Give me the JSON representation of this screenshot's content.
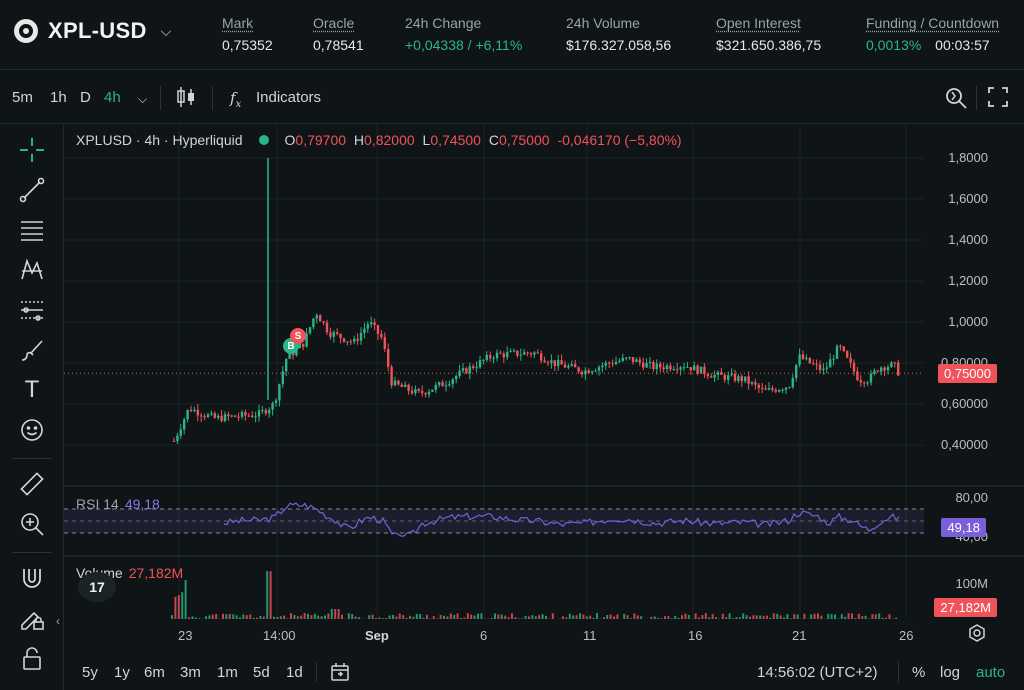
{
  "header": {
    "symbol": "XPL-USD",
    "stats": [
      {
        "label": "Mark",
        "value": "0,75352"
      },
      {
        "label": "Oracle",
        "value": "0,78541"
      },
      {
        "label": "24h Change",
        "value": "+0,04338 / +6,11%"
      },
      {
        "label": "24h Volume",
        "value": "$176.327.058,56"
      },
      {
        "label": "Open Interest",
        "value": "$321.650.386,75"
      },
      {
        "label": "Funding / Countdown",
        "funding": "0,0013%",
        "countdown": "00:03:57"
      }
    ]
  },
  "toolbar": {
    "intervals": [
      "5m",
      "1h",
      "D",
      "4h"
    ],
    "active_interval": "4h",
    "indicators_label": "Indicators"
  },
  "legend": {
    "title": "XPLUSD · 4h · Hyperliquid",
    "o_key": "O",
    "o": "0,79700",
    "h_key": "H",
    "h": "0,82000",
    "l_key": "L",
    "l": "0,74500",
    "c_key": "C",
    "c": "0,75000",
    "change": "-0,046170 (−5,80%)",
    "rsi_label": "RSI 14",
    "rsi_value": "49,18",
    "volume_label": "Volume",
    "volume_value": "27,182M"
  },
  "axis": {
    "price_ticks": [
      "1,8000",
      "1,6000",
      "1,4000",
      "1,2000",
      "1,0000",
      "0,80000",
      "0,60000",
      "0,40000"
    ],
    "price_tag": "0,75000",
    "rsi_ticks": [
      "80,00",
      "40,00"
    ],
    "rsi_tag": "49,18",
    "volume_tick": "100M",
    "volume_tag": "27,182M",
    "x_ticks": [
      "23",
      "14:00",
      "Sep",
      "6",
      "11",
      "16",
      "21",
      "26"
    ],
    "buy_marker": "B",
    "sell_marker": "S"
  },
  "bottom": {
    "ranges": [
      "5y",
      "1y",
      "6m",
      "3m",
      "1m",
      "5d",
      "1d"
    ],
    "clock": "14:56:02 (UTC+2)",
    "percent_label": "%",
    "log_label": "log",
    "auto_label": "auto"
  },
  "tools": [
    "crosshair-icon",
    "trend-line-icon",
    "horizontal-lines-icon",
    "pattern-icon",
    "fib-icon",
    "brush-icon",
    "text-icon",
    "emoji-icon",
    "ruler-icon",
    "zoom-in-icon",
    "magnet-icon",
    "lock-draw-icon",
    "lock-icon"
  ],
  "colors": {
    "up": "#2bb586",
    "down": "#f0535a",
    "rsi": "#7b5fd8",
    "background": "#0f1416"
  },
  "chart_data": {
    "type": "line",
    "price_ylim": [
      0.3,
      1.9
    ],
    "rsi_ylim": [
      0,
      100
    ],
    "rsi_bands": [
      30,
      70
    ]
  }
}
